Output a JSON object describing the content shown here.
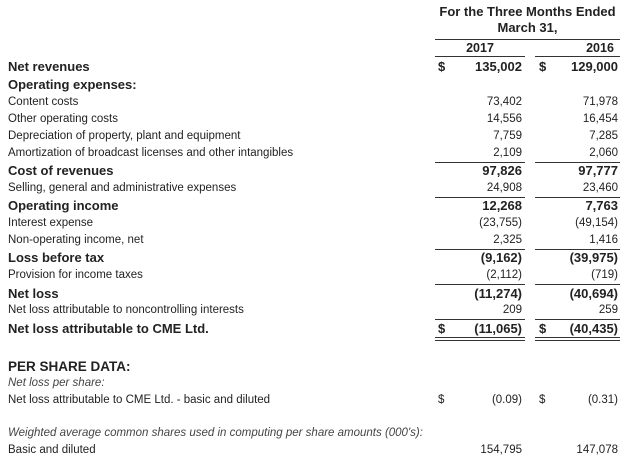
{
  "header": {
    "period": "For the Three Months Ended March 31,",
    "years": [
      "2017",
      "2016"
    ]
  },
  "rows": [
    {
      "label": "Net revenues",
      "currency": [
        "$",
        "$"
      ],
      "values": [
        "135,002",
        "129,000"
      ]
    },
    {
      "label": "Operating expenses:"
    },
    {
      "label": "Content costs",
      "values": [
        "73,402",
        "71,978"
      ]
    },
    {
      "label": "Other operating costs",
      "values": [
        "14,556",
        "16,454"
      ]
    },
    {
      "label": "Depreciation of property, plant and equipment",
      "values": [
        "7,759",
        "7,285"
      ]
    },
    {
      "label": "Amortization of broadcast licenses and other intangibles",
      "values": [
        "2,109",
        "2,060"
      ]
    },
    {
      "label": "Cost of revenues",
      "values": [
        "97,826",
        "97,777"
      ]
    },
    {
      "label": "Selling, general and administrative expenses",
      "values": [
        "24,908",
        "23,460"
      ]
    },
    {
      "label": "Operating income",
      "values": [
        "12,268",
        "7,763"
      ]
    },
    {
      "label": "Interest expense",
      "values": [
        "(23,755)",
        "(49,154)"
      ]
    },
    {
      "label": "Non-operating income, net",
      "values": [
        "2,325",
        "1,416"
      ]
    },
    {
      "label": "Loss before tax",
      "values": [
        "(9,162)",
        "(39,975)"
      ]
    },
    {
      "label": "Provision for income taxes",
      "values": [
        "(2,112)",
        "(719)"
      ]
    },
    {
      "label": "Net loss",
      "values": [
        "(11,274)",
        "(40,694)"
      ]
    },
    {
      "label": "Net loss attributable to noncontrolling interests",
      "values": [
        "209",
        "259"
      ]
    },
    {
      "label": "Net loss attributable to CME Ltd.",
      "currency": [
        "$",
        "$"
      ],
      "values": [
        "(11,065)",
        "(40,435)"
      ]
    },
    {
      "label": "PER SHARE DATA:"
    },
    {
      "label": "Net loss per share:"
    },
    {
      "label": "Net loss attributable to CME Ltd. - basic and diluted",
      "currency": [
        "$",
        "$"
      ],
      "values": [
        "(0.09)",
        "(0.31)"
      ]
    },
    {
      "label": "Weighted average common shares used in computing per share amounts (000's):"
    },
    {
      "label": "Basic and diluted",
      "values": [
        "154,795",
        "147,078"
      ]
    }
  ]
}
